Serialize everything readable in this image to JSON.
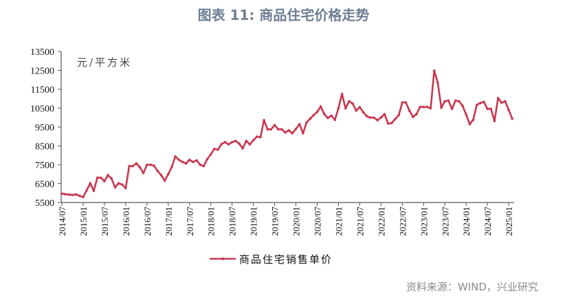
{
  "title": "图表 11: 商品住宅价格走势",
  "source": "资料来源：WIND，兴业研究",
  "colors": {
    "line": "#c8374f",
    "title": "#6e7f94",
    "axis": "#555555"
  },
  "chart_data": {
    "type": "line",
    "title": "图表 11: 商品住宅价格走势",
    "ylabel": "元/平方米",
    "xlabel": "",
    "ylim": [
      5500,
      13500
    ],
    "yticks": [
      5500,
      6500,
      7500,
      8500,
      9500,
      10500,
      11500,
      12500,
      13500
    ],
    "xticks": [
      "2014/07",
      "2015/01",
      "2015/07",
      "2016/01",
      "2016/07",
      "2017/01",
      "2017/07",
      "2018/01",
      "2018/07",
      "2019/01",
      "2019/07",
      "2020/01",
      "2020/07",
      "2021/01",
      "2021/07",
      "2022/01",
      "2022/07",
      "2023/01",
      "2023/07",
      "2024/01",
      "2024/07",
      "2025/01"
    ],
    "x_start": "2014/07",
    "x_frequency": "monthly",
    "grid": false,
    "legend": "bottom",
    "series": [
      {
        "name": "商品住宅销售单价",
        "values": [
          5970,
          5940,
          5920,
          5900,
          5930,
          5850,
          5790,
          6150,
          6520,
          6120,
          6810,
          6810,
          6630,
          6950,
          6770,
          6300,
          6520,
          6450,
          6260,
          7430,
          7430,
          7570,
          7370,
          7060,
          7500,
          7500,
          7450,
          7170,
          6950,
          6660,
          7000,
          7390,
          7940,
          7760,
          7650,
          7570,
          7760,
          7650,
          7730,
          7500,
          7430,
          7800,
          8050,
          8340,
          8300,
          8590,
          8700,
          8580,
          8700,
          8760,
          8620,
          8370,
          8760,
          8580,
          8800,
          8990,
          8960,
          9860,
          9380,
          9380,
          9600,
          9380,
          9380,
          9210,
          9320,
          9170,
          9400,
          9650,
          9170,
          9740,
          9940,
          10130,
          10300,
          10590,
          10180,
          9980,
          10100,
          9880,
          10500,
          11250,
          10490,
          10860,
          10740,
          10370,
          10550,
          10280,
          10070,
          10000,
          10000,
          9860,
          10000,
          10180,
          9680,
          9710,
          9920,
          10130,
          10800,
          10800,
          10370,
          10040,
          10180,
          10560,
          10560,
          10560,
          10490,
          12480,
          11850,
          10520,
          10860,
          10900,
          10460,
          10900,
          10860,
          10620,
          10160,
          9650,
          9880,
          10670,
          10770,
          10830,
          10460,
          10460,
          9820,
          11030,
          10790,
          10860,
          10400,
          9940
        ]
      }
    ]
  }
}
